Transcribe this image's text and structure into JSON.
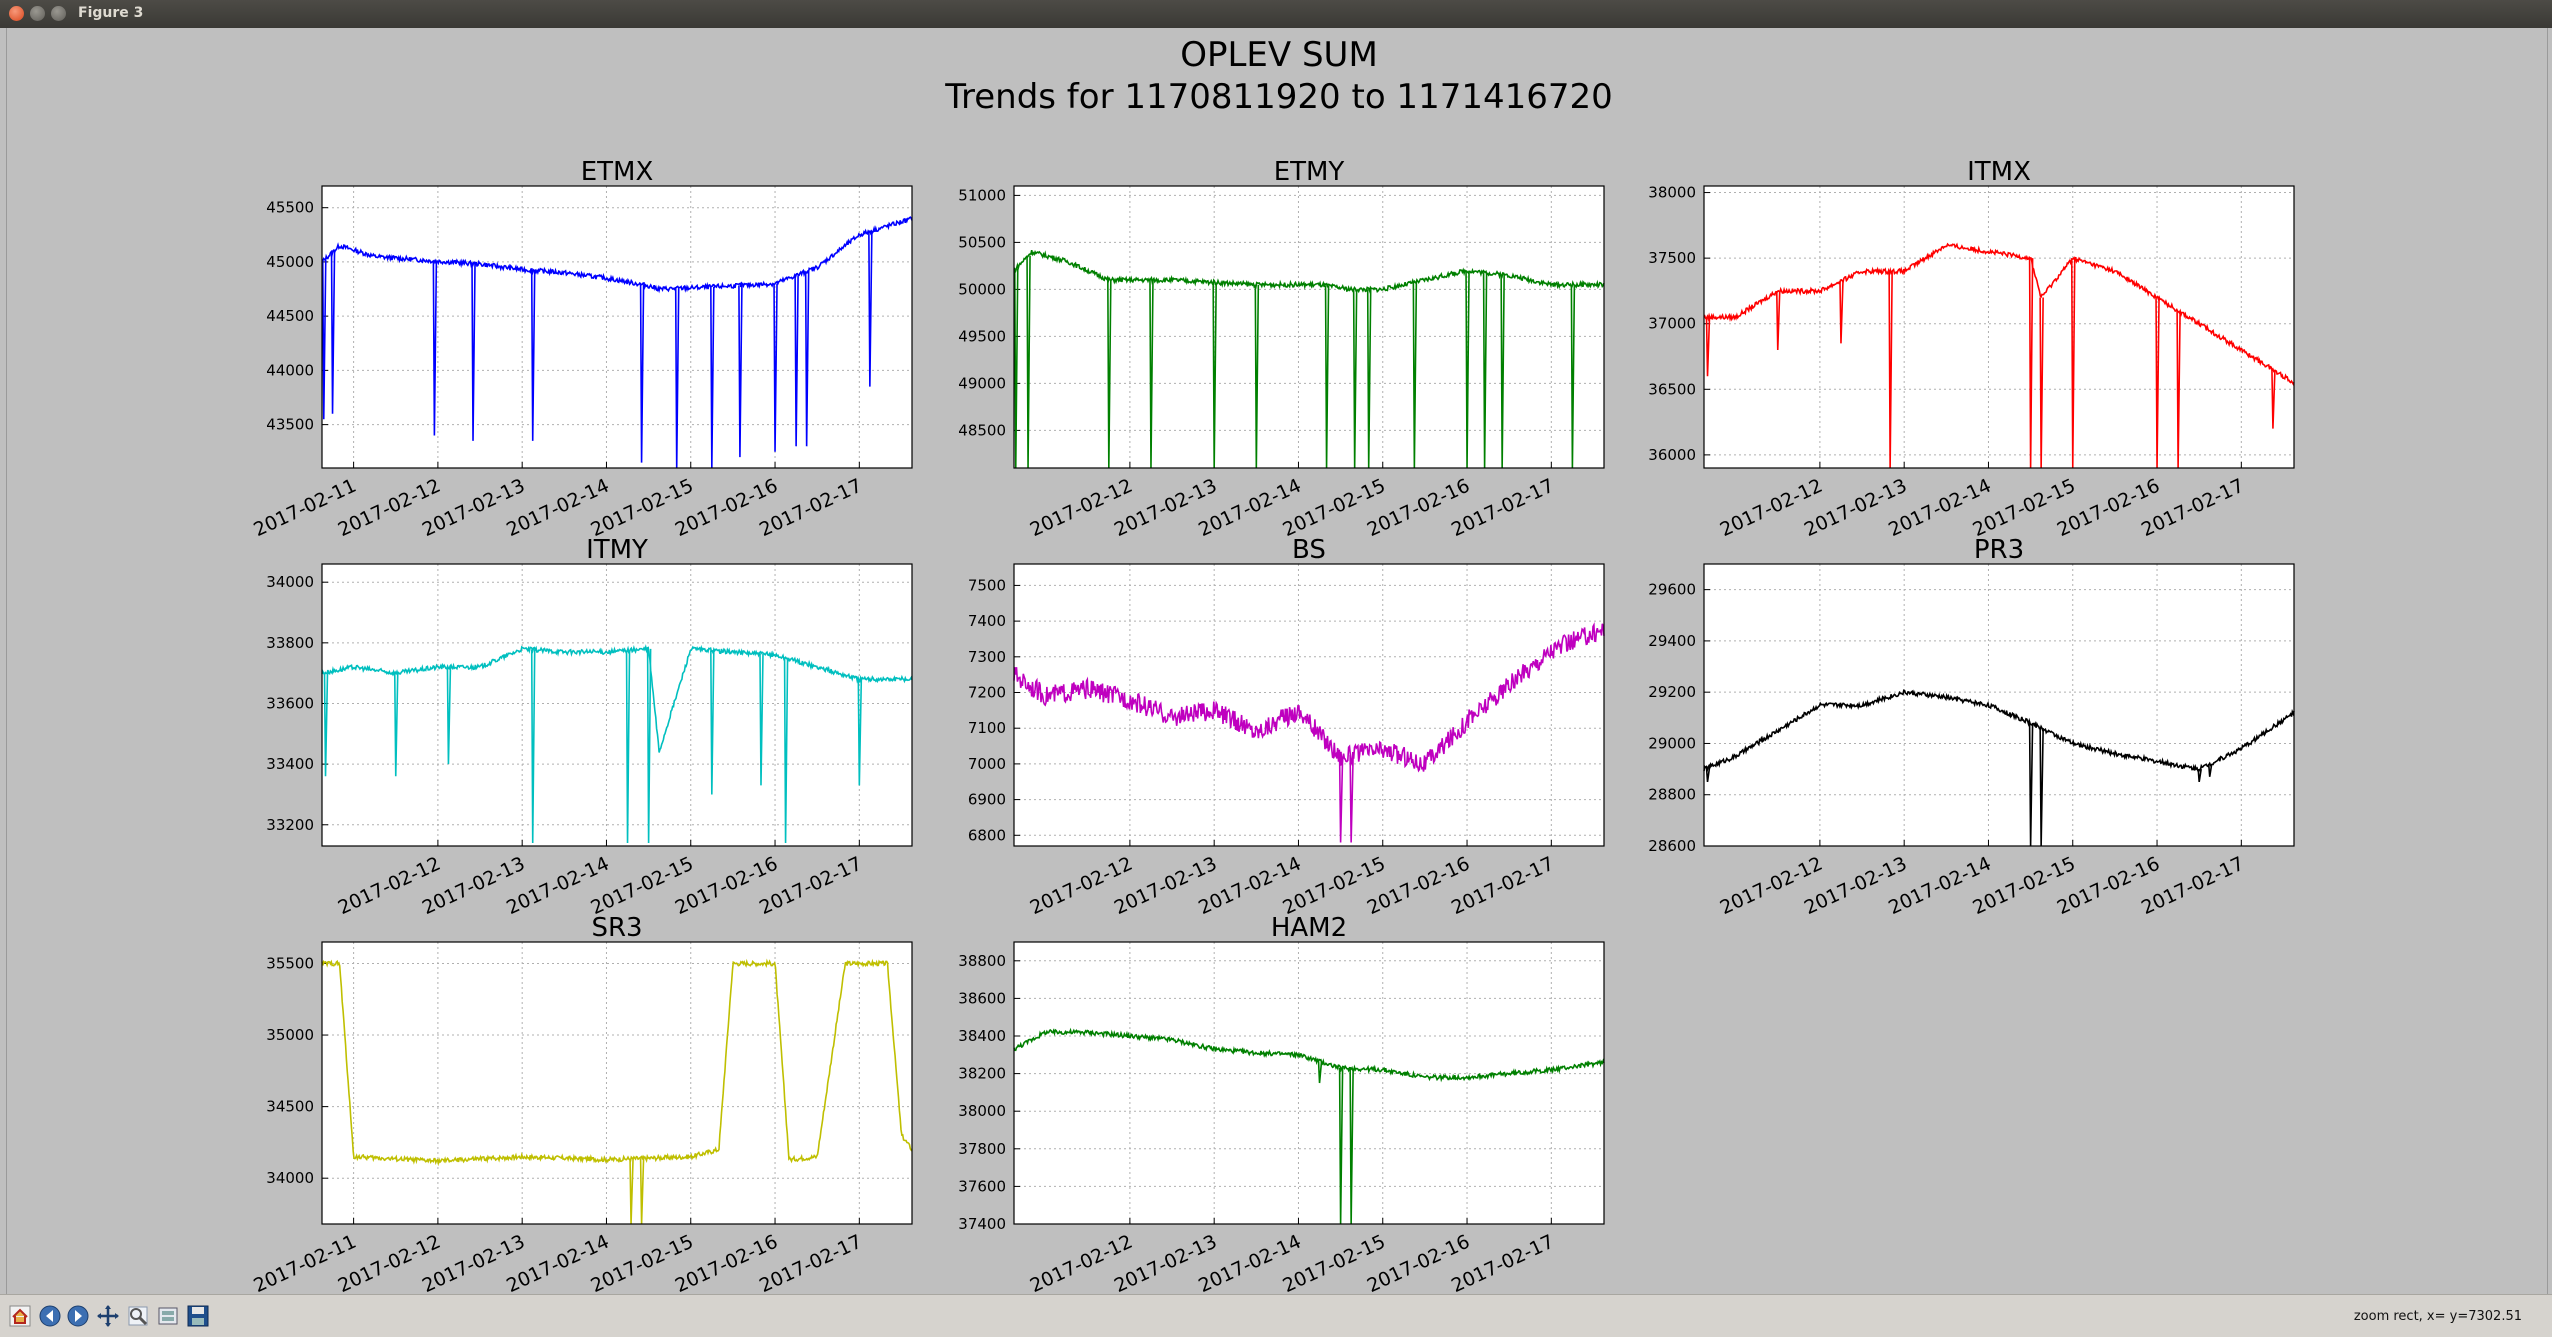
{
  "window": {
    "title": "Figure 3"
  },
  "figure": {
    "title": "OPLEV SUM",
    "subtitle": "Trends for 1170811920 to 1171416720"
  },
  "status": {
    "text": "zoom rect, x= y=7302.51"
  },
  "toolbar": {
    "buttons": [
      "home-icon",
      "back-icon",
      "forward-icon",
      "pan-icon",
      "zoom-icon",
      "configure-icon",
      "save-icon"
    ]
  },
  "chart_data": [
    {
      "type": "line",
      "title": "ETMX",
      "color": "#0000ff",
      "x_range": [
        "2017-02-10T15:00",
        "2017-02-17T15:00"
      ],
      "ylim": [
        43100,
        45700
      ],
      "yticks": [
        43500,
        44000,
        44500,
        45000,
        45500
      ],
      "xticks": [
        "2017-02-11",
        "2017-02-12",
        "2017-02-13",
        "2017-02-14",
        "2017-02-15",
        "2017-02-16",
        "2017-02-17"
      ],
      "series": [
        {
          "x": [
            "2017-02-10T15:00",
            "2017-02-10T20:00",
            "2017-02-11T06:00",
            "2017-02-11T18:00",
            "2017-02-12T12:00",
            "2017-02-13T00:00",
            "2017-02-13T12:00",
            "2017-02-14T00:00",
            "2017-02-14T12:00",
            "2017-02-14T15:00",
            "2017-02-15T00:00",
            "2017-02-15T12:00",
            "2017-02-16T00:00",
            "2017-02-16T12:00",
            "2017-02-17T00:00",
            "2017-02-17T15:00"
          ],
          "y": [
            45000,
            45150,
            45050,
            45020,
            44980,
            44930,
            44900,
            44850,
            44780,
            44750,
            44760,
            44780,
            44800,
            44950,
            45250,
            45400
          ]
        }
      ],
      "dips": [
        [
          "2017-02-10T15:30",
          43550
        ],
        [
          "2017-02-10T18:00",
          43600
        ],
        [
          "2017-02-11T23:00",
          43400
        ],
        [
          "2017-02-12T10:00",
          43350
        ],
        [
          "2017-02-13T03:00",
          43350
        ],
        [
          "2017-02-14T10:00",
          43150
        ],
        [
          "2017-02-14T20:00",
          43100
        ],
        [
          "2017-02-15T06:00",
          43100
        ],
        [
          "2017-02-15T14:00",
          43200
        ],
        [
          "2017-02-16T00:00",
          43250
        ],
        [
          "2017-02-16T06:00",
          43300
        ],
        [
          "2017-02-16T09:00",
          43300
        ],
        [
          "2017-02-17T03:00",
          43850
        ]
      ]
    },
    {
      "type": "line",
      "title": "ETMY",
      "color": "#008000",
      "x_range": [
        "2017-02-10T15:00",
        "2017-02-17T15:00"
      ],
      "ylim": [
        48100,
        51100
      ],
      "yticks": [
        48500,
        49000,
        49500,
        50000,
        50500,
        51000
      ],
      "xticks": [
        "2017-02-12",
        "2017-02-13",
        "2017-02-14",
        "2017-02-15",
        "2017-02-16",
        "2017-02-17"
      ],
      "series": [
        {
          "x": [
            "2017-02-10T15:00",
            "2017-02-10T20:00",
            "2017-02-11T06:00",
            "2017-02-11T18:00",
            "2017-02-12T12:00",
            "2017-02-13T12:00",
            "2017-02-14T06:00",
            "2017-02-14T15:00",
            "2017-02-15T00:00",
            "2017-02-15T12:00",
            "2017-02-16T00:00",
            "2017-02-16T12:00",
            "2017-02-17T00:00",
            "2017-02-17T15:00"
          ],
          "y": [
            50200,
            50400,
            50300,
            50100,
            50100,
            50050,
            50050,
            50000,
            50000,
            50100,
            50200,
            50150,
            50050,
            50050
          ]
        }
      ],
      "dips": [
        [
          "2017-02-10T15:30",
          48100
        ],
        [
          "2017-02-10T19:00",
          48100
        ],
        [
          "2017-02-11T18:00",
          48100
        ],
        [
          "2017-02-12T06:00",
          48100
        ],
        [
          "2017-02-13T00:00",
          48100
        ],
        [
          "2017-02-13T12:00",
          48100
        ],
        [
          "2017-02-14T08:00",
          48100
        ],
        [
          "2017-02-14T16:00",
          48100
        ],
        [
          "2017-02-14T20:00",
          48100
        ],
        [
          "2017-02-15T09:00",
          48100
        ],
        [
          "2017-02-16T00:00",
          48100
        ],
        [
          "2017-02-16T05:00",
          48100
        ],
        [
          "2017-02-16T10:00",
          48100
        ],
        [
          "2017-02-17T06:00",
          48100
        ]
      ]
    },
    {
      "type": "line",
      "title": "ITMX",
      "color": "#ff0000",
      "x_range": [
        "2017-02-10T15:00",
        "2017-02-17T15:00"
      ],
      "ylim": [
        35900,
        38050
      ],
      "yticks": [
        36000,
        36500,
        37000,
        37500,
        38000
      ],
      "xticks": [
        "2017-02-12",
        "2017-02-13",
        "2017-02-14",
        "2017-02-15",
        "2017-02-16",
        "2017-02-17"
      ],
      "series": [
        {
          "x": [
            "2017-02-10T15:00",
            "2017-02-11T00:00",
            "2017-02-11T12:00",
            "2017-02-12T00:00",
            "2017-02-12T12:00",
            "2017-02-13T00:00",
            "2017-02-13T12:00",
            "2017-02-14T00:00",
            "2017-02-14T12:00",
            "2017-02-14T15:00",
            "2017-02-15T00:00",
            "2017-02-15T12:00",
            "2017-02-16T00:00",
            "2017-02-16T12:00",
            "2017-02-17T00:00",
            "2017-02-17T15:00"
          ],
          "y": [
            37050,
            37050,
            37250,
            37250,
            37400,
            37400,
            37600,
            37550,
            37500,
            37200,
            37500,
            37400,
            37200,
            37000,
            36800,
            36550
          ]
        }
      ],
      "dips": [
        [
          "2017-02-10T16:00",
          36600
        ],
        [
          "2017-02-11T12:00",
          36800
        ],
        [
          "2017-02-12T06:00",
          36850
        ],
        [
          "2017-02-12T20:00",
          35900
        ],
        [
          "2017-02-14T12:00",
          35900
        ],
        [
          "2017-02-14T15:00",
          35900
        ],
        [
          "2017-02-15T00:00",
          35900
        ],
        [
          "2017-02-16T00:00",
          35900
        ],
        [
          "2017-02-16T06:00",
          35900
        ],
        [
          "2017-02-17T09:00",
          36200
        ]
      ]
    },
    {
      "type": "line",
      "title": "ITMY",
      "color": "#00bfbf",
      "x_range": [
        "2017-02-10T15:00",
        "2017-02-17T15:00"
      ],
      "ylim": [
        33130,
        34060
      ],
      "yticks": [
        33200,
        33400,
        33600,
        33800,
        34000
      ],
      "xticks": [
        "2017-02-12",
        "2017-02-13",
        "2017-02-14",
        "2017-02-15",
        "2017-02-16",
        "2017-02-17"
      ],
      "series": [
        {
          "x": [
            "2017-02-10T15:00",
            "2017-02-11T00:00",
            "2017-02-11T12:00",
            "2017-02-12T00:00",
            "2017-02-12T12:00",
            "2017-02-13T00:00",
            "2017-02-13T12:00",
            "2017-02-14T00:00",
            "2017-02-14T12:00",
            "2017-02-14T15:00",
            "2017-02-15T00:00",
            "2017-02-15T12:00",
            "2017-02-16T00:00",
            "2017-02-16T12:00",
            "2017-02-17T00:00",
            "2017-02-17T15:00"
          ],
          "y": [
            33700,
            33720,
            33700,
            33720,
            33720,
            33780,
            33770,
            33770,
            33780,
            33440,
            33780,
            33770,
            33760,
            33720,
            33680,
            33680
          ]
        }
      ],
      "dips": [
        [
          "2017-02-10T16:00",
          33360
        ],
        [
          "2017-02-11T12:00",
          33360
        ],
        [
          "2017-02-12T03:00",
          33400
        ],
        [
          "2017-02-13T03:00",
          33140
        ],
        [
          "2017-02-14T06:00",
          33140
        ],
        [
          "2017-02-14T12:00",
          33140
        ],
        [
          "2017-02-15T06:00",
          33300
        ],
        [
          "2017-02-15T20:00",
          33330
        ],
        [
          "2017-02-16T03:00",
          33140
        ],
        [
          "2017-02-17T00:00",
          33330
        ]
      ]
    },
    {
      "type": "line",
      "title": "BS",
      "color": "#bf00bf",
      "x_range": [
        "2017-02-10T15:00",
        "2017-02-17T15:00"
      ],
      "ylim": [
        6770,
        7560
      ],
      "yticks": [
        6800,
        6900,
        7000,
        7100,
        7200,
        7300,
        7400,
        7500
      ],
      "xticks": [
        "2017-02-12",
        "2017-02-13",
        "2017-02-14",
        "2017-02-15",
        "2017-02-16",
        "2017-02-17"
      ],
      "series": [
        {
          "x": [
            "2017-02-10T15:00",
            "2017-02-11T00:00",
            "2017-02-11T12:00",
            "2017-02-12T00:00",
            "2017-02-12T12:00",
            "2017-02-13T00:00",
            "2017-02-13T12:00",
            "2017-02-14T00:00",
            "2017-02-14T12:00",
            "2017-02-15T00:00",
            "2017-02-15T12:00",
            "2017-02-16T00:00",
            "2017-02-16T12:00",
            "2017-02-17T00:00",
            "2017-02-17T15:00"
          ],
          "y": [
            7250,
            7190,
            7210,
            7180,
            7130,
            7150,
            7090,
            7150,
            7020,
            7040,
            7000,
            7120,
            7220,
            7320,
            7380
          ]
        }
      ],
      "dips": [
        [
          "2017-02-14T12:00",
          6780
        ],
        [
          "2017-02-14T15:00",
          6780
        ]
      ]
    },
    {
      "type": "line",
      "title": "PR3",
      "color": "#000000",
      "x_range": [
        "2017-02-10T15:00",
        "2017-02-17T15:00"
      ],
      "ylim": [
        28600,
        29700
      ],
      "yticks": [
        28600,
        28800,
        29000,
        29200,
        29400,
        29600
      ],
      "xticks": [
        "2017-02-12",
        "2017-02-13",
        "2017-02-14",
        "2017-02-15",
        "2017-02-16",
        "2017-02-17"
      ],
      "series": [
        {
          "x": [
            "2017-02-10T15:00",
            "2017-02-11T00:00",
            "2017-02-11T12:00",
            "2017-02-12T00:00",
            "2017-02-12T12:00",
            "2017-02-13T00:00",
            "2017-02-13T12:00",
            "2017-02-14T00:00",
            "2017-02-14T12:00",
            "2017-02-15T00:00",
            "2017-02-15T12:00",
            "2017-02-16T00:00",
            "2017-02-16T12:00",
            "2017-02-17T00:00",
            "2017-02-17T15:00"
          ],
          "y": [
            28900,
            28950,
            29050,
            29150,
            29150,
            29200,
            29180,
            29150,
            29080,
            29000,
            28960,
            28930,
            28900,
            28980,
            29120
          ]
        }
      ],
      "dips": [
        [
          "2017-02-10T16:00",
          28850
        ],
        [
          "2017-02-14T12:00",
          28600
        ],
        [
          "2017-02-14T15:00",
          28600
        ],
        [
          "2017-02-16T12:00",
          28850
        ],
        [
          "2017-02-16T15:00",
          28870
        ]
      ]
    },
    {
      "type": "line",
      "title": "SR3",
      "color": "#bfbf00",
      "x_range": [
        "2017-02-10T15:00",
        "2017-02-17T15:00"
      ],
      "ylim": [
        33680,
        35650
      ],
      "yticks": [
        34000,
        34500,
        35000,
        35500
      ],
      "xticks": [
        "2017-02-11",
        "2017-02-12",
        "2017-02-13",
        "2017-02-14",
        "2017-02-15",
        "2017-02-16",
        "2017-02-17"
      ],
      "series": [
        {
          "x": [
            "2017-02-10T15:00",
            "2017-02-10T20:00",
            "2017-02-11T00:00",
            "2017-02-12T00:00",
            "2017-02-13T00:00",
            "2017-02-14T00:00",
            "2017-02-15T00:00",
            "2017-02-15T08:00",
            "2017-02-15T12:00",
            "2017-02-16T00:00",
            "2017-02-16T04:00",
            "2017-02-16T12:00",
            "2017-02-16T20:00",
            "2017-02-17T00:00",
            "2017-02-17T08:00",
            "2017-02-17T12:00",
            "2017-02-17T15:00"
          ],
          "y": [
            35500,
            35500,
            34150,
            34120,
            34150,
            34130,
            34150,
            34200,
            35500,
            35500,
            34130,
            34150,
            35500,
            35500,
            35500,
            34300,
            34200
          ]
        }
      ],
      "dips": [
        [
          "2017-02-14T07:00",
          33680
        ],
        [
          "2017-02-14T10:00",
          33680
        ]
      ]
    },
    {
      "type": "line",
      "title": "HAM2",
      "color": "#008000",
      "x_range": [
        "2017-02-10T15:00",
        "2017-02-17T15:00"
      ],
      "ylim": [
        37400,
        38900
      ],
      "yticks": [
        37400,
        37600,
        37800,
        38000,
        38200,
        38400,
        38600,
        38800
      ],
      "xticks": [
        "2017-02-12",
        "2017-02-13",
        "2017-02-14",
        "2017-02-15",
        "2017-02-16",
        "2017-02-17"
      ],
      "series": [
        {
          "x": [
            "2017-02-10T15:00",
            "2017-02-11T00:00",
            "2017-02-11T12:00",
            "2017-02-12T00:00",
            "2017-02-12T12:00",
            "2017-02-13T00:00",
            "2017-02-13T12:00",
            "2017-02-14T00:00",
            "2017-02-14T12:00",
            "2017-02-15T00:00",
            "2017-02-15T12:00",
            "2017-02-16T00:00",
            "2017-02-16T12:00",
            "2017-02-17T00:00",
            "2017-02-17T15:00"
          ],
          "y": [
            38330,
            38420,
            38420,
            38400,
            38380,
            38330,
            38310,
            38300,
            38230,
            38220,
            38180,
            38180,
            38200,
            38220,
            38260
          ]
        }
      ],
      "dips": [
        [
          "2017-02-14T12:00",
          37400
        ],
        [
          "2017-02-14T15:00",
          37400
        ],
        [
          "2017-02-14T06:00",
          38150
        ]
      ]
    }
  ]
}
